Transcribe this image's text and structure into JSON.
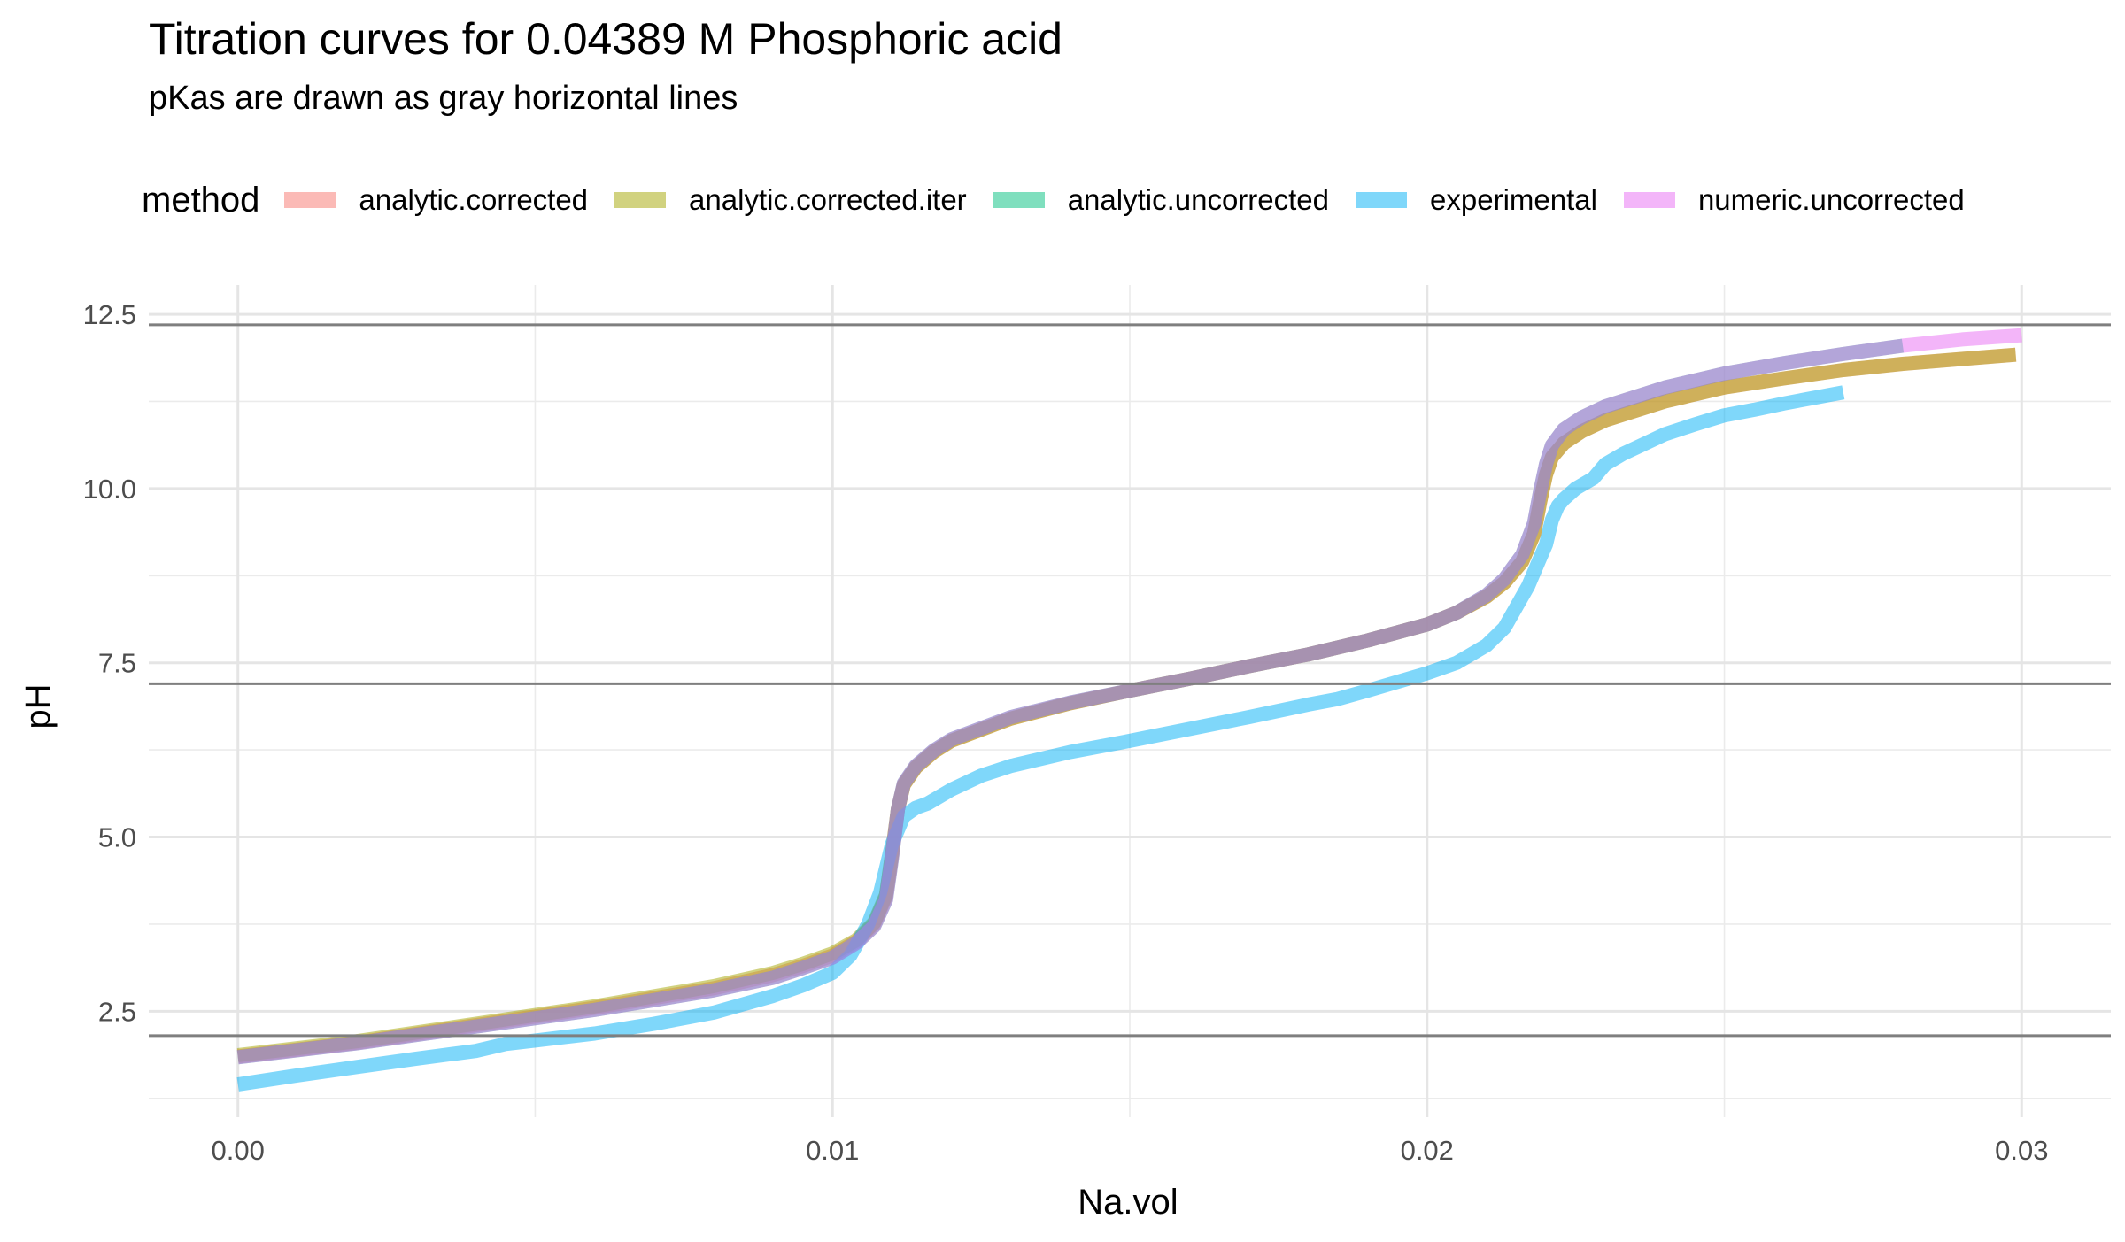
{
  "chart_data": {
    "type": "line",
    "title": "Titration curves for 0.04389 M Phosphoric acid",
    "subtitle": "pKas are drawn as gray horizontal lines",
    "xlabel": "Na.vol",
    "ylabel": "pH",
    "xlim": [
      -0.0015,
      0.0315
    ],
    "ylim": [
      0.98,
      12.92
    ],
    "x_ticks": [
      0.0,
      0.01,
      0.02,
      0.03
    ],
    "x_tick_labels": [
      "0.00",
      "0.01",
      "0.02",
      "0.03"
    ],
    "y_ticks": [
      2.5,
      5.0,
      7.5,
      10.0,
      12.5
    ],
    "y_tick_labels": [
      "2.5",
      "5.0",
      "7.5",
      "10.0",
      "12.5"
    ],
    "grid": true,
    "legend": {
      "title": "method",
      "position": "top",
      "entries": [
        "analytic.corrected",
        "analytic.corrected.iter",
        "analytic.uncorrected",
        "experimental",
        "numeric.uncorrected"
      ]
    },
    "hlines": [
      2.15,
      7.2,
      12.35
    ],
    "series": [
      {
        "name": "analytic.corrected",
        "color": "#F8766D",
        "x": [
          0,
          0.002,
          0.004,
          0.006,
          0.008,
          0.009,
          0.0095,
          0.01,
          0.0104,
          0.0107,
          0.0109,
          0.011,
          0.0111,
          0.0112,
          0.0114,
          0.0117,
          0.012,
          0.013,
          0.014,
          0.015,
          0.016,
          0.017,
          0.018,
          0.019,
          0.02,
          0.0205,
          0.021,
          0.0213,
          0.0216,
          0.0218,
          0.0219,
          0.022,
          0.0221,
          0.0223,
          0.0226,
          0.023,
          0.024,
          0.025,
          0.026,
          0.027,
          0.028,
          0.029,
          0.0299
        ],
        "y": [
          1.85,
          2.05,
          2.3,
          2.55,
          2.83,
          3.02,
          3.15,
          3.3,
          3.5,
          3.75,
          4.15,
          4.75,
          5.4,
          5.75,
          6.0,
          6.22,
          6.38,
          6.7,
          6.92,
          7.1,
          7.27,
          7.45,
          7.62,
          7.82,
          8.05,
          8.22,
          8.45,
          8.65,
          8.95,
          9.35,
          9.8,
          10.2,
          10.45,
          10.65,
          10.82,
          10.98,
          11.25,
          11.45,
          11.58,
          11.7,
          11.79,
          11.86,
          11.92
        ]
      },
      {
        "name": "analytic.corrected.iter",
        "color": "#A3A500",
        "x": [
          0,
          0.002,
          0.004,
          0.006,
          0.008,
          0.009,
          0.0095,
          0.01,
          0.0104,
          0.0107,
          0.0109,
          0.011,
          0.0111,
          0.0112,
          0.0114,
          0.0117,
          0.012,
          0.013,
          0.014,
          0.015,
          0.016,
          0.017,
          0.018,
          0.019,
          0.02,
          0.0205,
          0.021,
          0.0213,
          0.0216,
          0.0218,
          0.0219,
          0.022,
          0.0221,
          0.0223,
          0.0226,
          0.023,
          0.024,
          0.025,
          0.026,
          0.027,
          0.028,
          0.029,
          0.0299
        ],
        "y": [
          1.87,
          2.07,
          2.32,
          2.57,
          2.86,
          3.05,
          3.18,
          3.33,
          3.52,
          3.77,
          4.17,
          4.75,
          5.4,
          5.75,
          6.0,
          6.22,
          6.38,
          6.7,
          6.92,
          7.1,
          7.27,
          7.45,
          7.62,
          7.82,
          8.05,
          8.22,
          8.45,
          8.65,
          8.95,
          9.35,
          9.8,
          10.2,
          10.45,
          10.65,
          10.82,
          10.98,
          11.25,
          11.45,
          11.58,
          11.7,
          11.79,
          11.86,
          11.92
        ]
      },
      {
        "name": "analytic.uncorrected",
        "color": "#00BF7D",
        "x": [
          0,
          0.002,
          0.004,
          0.006,
          0.008,
          0.009,
          0.0095,
          0.01,
          0.0104,
          0.0107,
          0.0109,
          0.011,
          0.0111,
          0.0112,
          0.0114,
          0.0117,
          0.012,
          0.013,
          0.014,
          0.015,
          0.016,
          0.017,
          0.018,
          0.019,
          0.02,
          0.0205,
          0.021,
          0.0213,
          0.0216,
          0.0218,
          0.0219,
          0.022,
          0.0221,
          0.0223,
          0.0226,
          0.023,
          0.024,
          0.025,
          0.026,
          0.027,
          0.028
        ],
        "y": [
          1.84,
          2.04,
          2.28,
          2.52,
          2.8,
          2.98,
          3.12,
          3.27,
          3.48,
          3.72,
          4.1,
          4.7,
          5.4,
          5.77,
          6.02,
          6.24,
          6.4,
          6.72,
          6.93,
          7.1,
          7.27,
          7.45,
          7.62,
          7.82,
          8.05,
          8.22,
          8.47,
          8.7,
          9.05,
          9.5,
          9.95,
          10.35,
          10.62,
          10.85,
          11.02,
          11.18,
          11.45,
          11.65,
          11.8,
          11.93,
          12.05
        ]
      },
      {
        "name": "experimental",
        "color": "#00B0F6",
        "x": [
          0,
          0.001,
          0.002,
          0.003,
          0.004,
          0.0045,
          0.005,
          0.006,
          0.007,
          0.008,
          0.009,
          0.0095,
          0.01,
          0.0103,
          0.0106,
          0.0108,
          0.0109,
          0.011,
          0.0112,
          0.0114,
          0.0116,
          0.012,
          0.0125,
          0.013,
          0.014,
          0.015,
          0.016,
          0.017,
          0.018,
          0.0185,
          0.019,
          0.02,
          0.0205,
          0.021,
          0.0213,
          0.0215,
          0.0217,
          0.0219,
          0.022,
          0.0221,
          0.0222,
          0.0223,
          0.0225,
          0.0228,
          0.023,
          0.0233,
          0.0236,
          0.024,
          0.0245,
          0.025,
          0.0255,
          0.026,
          0.0265,
          0.027
        ],
        "y": [
          1.45,
          1.58,
          1.7,
          1.82,
          1.93,
          2.03,
          2.08,
          2.18,
          2.32,
          2.48,
          2.72,
          2.87,
          3.05,
          3.3,
          3.75,
          4.2,
          4.55,
          4.9,
          5.3,
          5.42,
          5.48,
          5.68,
          5.88,
          6.02,
          6.22,
          6.38,
          6.55,
          6.72,
          6.9,
          6.98,
          7.1,
          7.35,
          7.5,
          7.75,
          8.0,
          8.3,
          8.6,
          9.0,
          9.2,
          9.55,
          9.75,
          9.85,
          10.0,
          10.15,
          10.35,
          10.5,
          10.62,
          10.78,
          10.92,
          11.05,
          11.13,
          11.22,
          11.3,
          11.38
        ]
      },
      {
        "name": "numeric.uncorrected",
        "color": "#E76BF3",
        "x": [
          0,
          0.002,
          0.004,
          0.006,
          0.008,
          0.009,
          0.0095,
          0.01,
          0.0104,
          0.0107,
          0.0109,
          0.011,
          0.0111,
          0.0112,
          0.0114,
          0.0117,
          0.012,
          0.013,
          0.014,
          0.015,
          0.016,
          0.017,
          0.018,
          0.019,
          0.02,
          0.0205,
          0.021,
          0.0213,
          0.0216,
          0.0218,
          0.0219,
          0.022,
          0.0221,
          0.0223,
          0.0226,
          0.023,
          0.024,
          0.025,
          0.026,
          0.027,
          0.028,
          0.029,
          0.03
        ],
        "y": [
          1.84,
          2.04,
          2.28,
          2.52,
          2.8,
          2.98,
          3.12,
          3.27,
          3.48,
          3.72,
          4.1,
          4.7,
          5.4,
          5.77,
          6.02,
          6.24,
          6.4,
          6.72,
          6.93,
          7.1,
          7.27,
          7.45,
          7.62,
          7.82,
          8.05,
          8.22,
          8.47,
          8.7,
          9.05,
          9.5,
          9.95,
          10.35,
          10.62,
          10.85,
          11.02,
          11.18,
          11.45,
          11.65,
          11.8,
          11.93,
          12.05,
          12.14,
          12.2
        ]
      }
    ]
  }
}
